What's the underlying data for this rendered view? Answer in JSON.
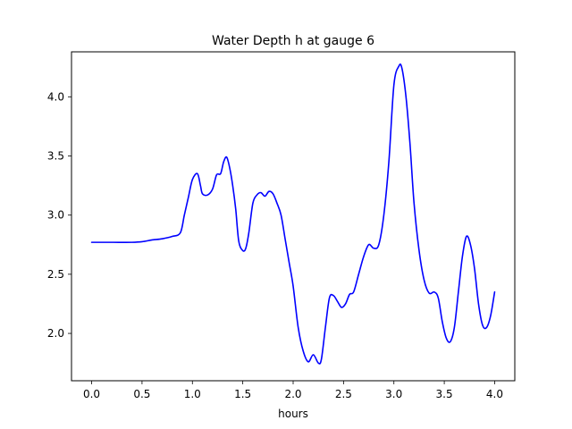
{
  "chart_data": {
    "type": "line",
    "title": "Water Depth h at gauge 6",
    "xlabel": "hours",
    "ylabel": "",
    "xlim": [
      -0.2,
      4.2
    ],
    "ylim": [
      1.6,
      4.38
    ],
    "grid": false,
    "xticks": [
      0.0,
      0.5,
      1.0,
      1.5,
      2.0,
      2.5,
      3.0,
      3.5,
      4.0
    ],
    "xtick_labels": [
      "0.0",
      "0.5",
      "1.0",
      "1.5",
      "2.0",
      "2.5",
      "3.0",
      "3.5",
      "4.0"
    ],
    "yticks": [
      2.0,
      2.5,
      3.0,
      3.5,
      4.0
    ],
    "ytick_labels": [
      "2.0",
      "2.5",
      "3.0",
      "3.5",
      "4.0"
    ],
    "series": [
      {
        "color": "#0000ff",
        "x": [
          0.0,
          0.2,
          0.4,
          0.5,
          0.6,
          0.7,
          0.8,
          0.88,
          0.92,
          0.96,
          1.0,
          1.05,
          1.08,
          1.1,
          1.15,
          1.2,
          1.24,
          1.28,
          1.31,
          1.34,
          1.37,
          1.4,
          1.43,
          1.46,
          1.5,
          1.53,
          1.56,
          1.6,
          1.64,
          1.68,
          1.72,
          1.76,
          1.8,
          1.84,
          1.88,
          1.92,
          1.96,
          2.0,
          2.05,
          2.1,
          2.15,
          2.2,
          2.25,
          2.28,
          2.32,
          2.36,
          2.4,
          2.44,
          2.48,
          2.52,
          2.56,
          2.6,
          2.65,
          2.7,
          2.75,
          2.8,
          2.85,
          2.9,
          2.95,
          3.0,
          3.05,
          3.08,
          3.12,
          3.16,
          3.2,
          3.25,
          3.3,
          3.35,
          3.4,
          3.44,
          3.48,
          3.52,
          3.56,
          3.6,
          3.64,
          3.68,
          3.72,
          3.76,
          3.8,
          3.84,
          3.88,
          3.92,
          3.96,
          4.0
        ],
        "y": [
          2.77,
          2.77,
          2.77,
          2.775,
          2.79,
          2.8,
          2.82,
          2.85,
          3.0,
          3.15,
          3.3,
          3.35,
          3.25,
          3.18,
          3.17,
          3.22,
          3.34,
          3.35,
          3.45,
          3.49,
          3.4,
          3.25,
          3.05,
          2.78,
          2.7,
          2.72,
          2.85,
          3.1,
          3.17,
          3.19,
          3.16,
          3.2,
          3.18,
          3.1,
          3.0,
          2.8,
          2.6,
          2.4,
          2.05,
          1.85,
          1.76,
          1.82,
          1.75,
          1.78,
          2.05,
          2.3,
          2.32,
          2.27,
          2.22,
          2.25,
          2.33,
          2.35,
          2.5,
          2.65,
          2.75,
          2.72,
          2.75,
          3.0,
          3.45,
          4.1,
          4.26,
          4.24,
          4.0,
          3.6,
          3.1,
          2.7,
          2.45,
          2.34,
          2.35,
          2.3,
          2.1,
          1.96,
          1.93,
          2.05,
          2.35,
          2.65,
          2.82,
          2.75,
          2.55,
          2.25,
          2.07,
          2.05,
          2.15,
          2.35
        ]
      }
    ]
  }
}
